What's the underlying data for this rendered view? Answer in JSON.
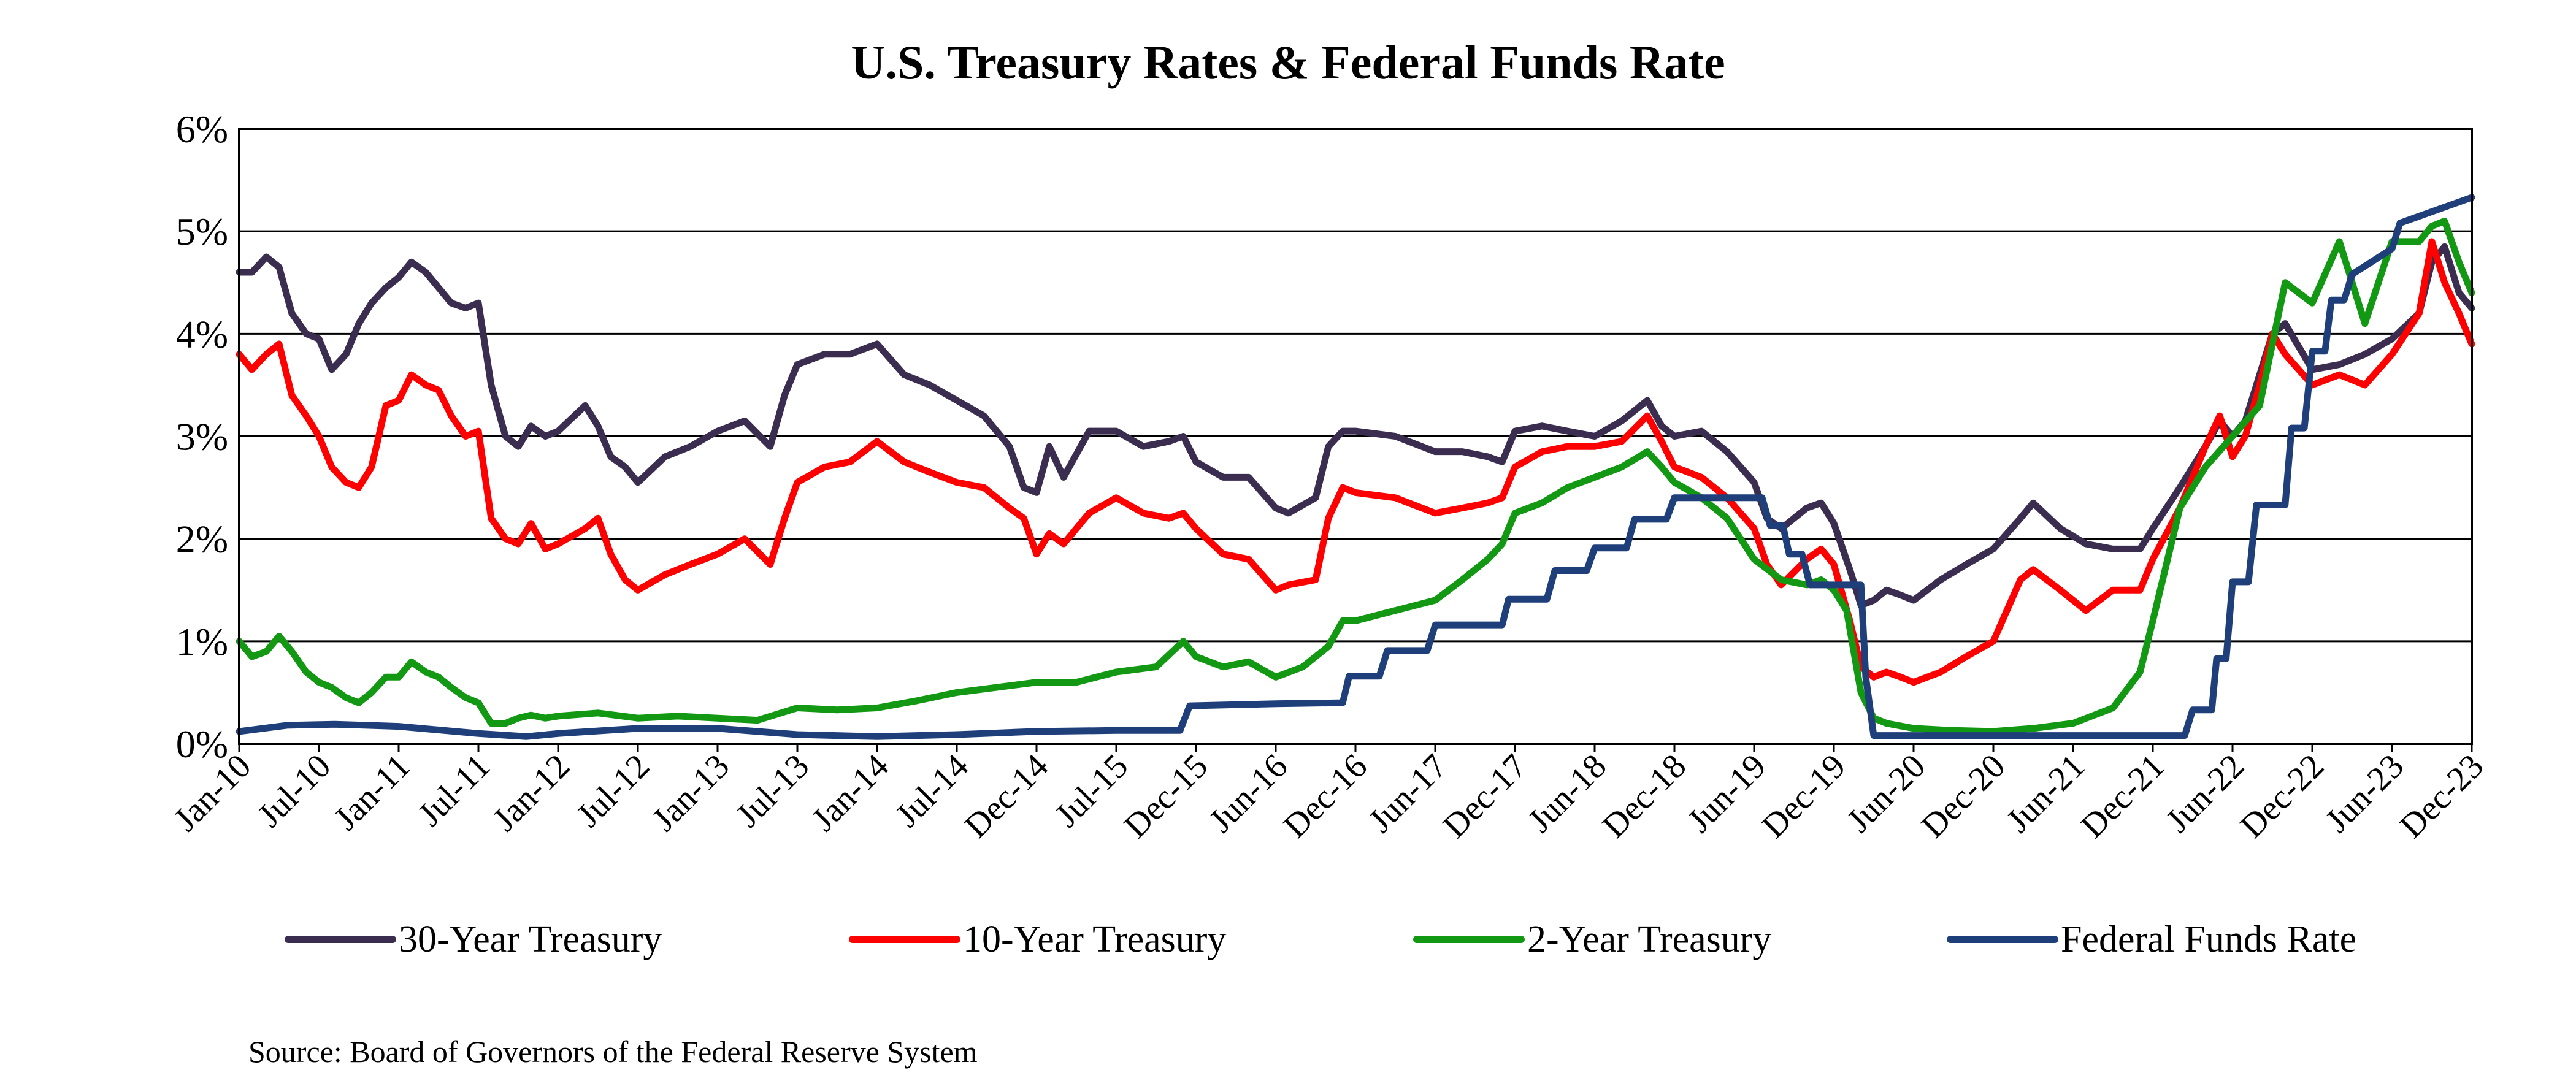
{
  "chart_data": {
    "type": "line",
    "title": "U.S. Treasury Rates & Federal Funds Rate",
    "xlabel": "",
    "ylabel": "",
    "ylim": [
      0,
      6
    ],
    "yticks": [
      0,
      1,
      2,
      3,
      4,
      5,
      6
    ],
    "ytick_labels": [
      "0%",
      "1%",
      "2%",
      "3%",
      "4%",
      "5%",
      "6%"
    ],
    "xlim": [
      2010.0,
      2024.0
    ],
    "xtick_labels": [
      "Jan-10",
      "Jul-10",
      "Jan-11",
      "Jul-11",
      "Jan-12",
      "Jul-12",
      "Jan-13",
      "Jul-13",
      "Jan-14",
      "Jul-14",
      "Dec-14",
      "Jul-15",
      "Dec-15",
      "Jun-16",
      "Dec-16",
      "Jun-17",
      "Dec-17",
      "Jun-18",
      "Dec-18",
      "Jun-19",
      "Dec-19",
      "Jun-20",
      "Dec-20",
      "Jun-21",
      "Dec-21",
      "Jun-22",
      "Dec-22",
      "Jun-23",
      "Dec-23"
    ],
    "grid": true,
    "legend_position": "bottom",
    "series": [
      {
        "name": "30-Year Treasury",
        "color": "#3b2d4f",
        "x": [
          2010.0,
          2010.08,
          2010.17,
          2010.25,
          2010.33,
          2010.42,
          2010.5,
          2010.58,
          2010.67,
          2010.75,
          2010.83,
          2010.92,
          2011.0,
          2011.08,
          2011.17,
          2011.25,
          2011.33,
          2011.42,
          2011.5,
          2011.58,
          2011.67,
          2011.75,
          2011.83,
          2011.92,
          2012.0,
          2012.17,
          2012.25,
          2012.33,
          2012.42,
          2012.5,
          2012.67,
          2012.83,
          2013.0,
          2013.17,
          2013.33,
          2013.42,
          2013.5,
          2013.67,
          2013.83,
          2014.0,
          2014.17,
          2014.33,
          2014.5,
          2014.67,
          2014.83,
          2014.92,
          2015.0,
          2015.08,
          2015.17,
          2015.33,
          2015.5,
          2015.67,
          2015.83,
          2015.92,
          2016.0,
          2016.17,
          2016.33,
          2016.5,
          2016.58,
          2016.75,
          2016.83,
          2016.92,
          2017.0,
          2017.25,
          2017.5,
          2017.67,
          2017.83,
          2017.92,
          2018.0,
          2018.17,
          2018.33,
          2018.5,
          2018.67,
          2018.83,
          2018.92,
          2019.0,
          2019.17,
          2019.33,
          2019.5,
          2019.58,
          2019.67,
          2019.83,
          2019.92,
          2020.0,
          2020.1,
          2020.17,
          2020.25,
          2020.33,
          2020.42,
          2020.5,
          2020.67,
          2020.83,
          2021.0,
          2021.17,
          2021.25,
          2021.42,
          2021.58,
          2021.75,
          2021.92,
          2022.0,
          2022.17,
          2022.33,
          2022.42,
          2022.5,
          2022.58,
          2022.67,
          2022.75,
          2022.83,
          2023.0,
          2023.17,
          2023.33,
          2023.5,
          2023.67,
          2023.75,
          2023.83,
          2023.92,
          2024.0
        ],
        "y": [
          4.6,
          4.6,
          4.75,
          4.65,
          4.2,
          4.0,
          3.95,
          3.65,
          3.8,
          4.1,
          4.3,
          4.45,
          4.55,
          4.7,
          4.6,
          4.45,
          4.3,
          4.25,
          4.3,
          3.5,
          3.0,
          2.9,
          3.1,
          3.0,
          3.05,
          3.3,
          3.1,
          2.8,
          2.7,
          2.55,
          2.8,
          2.9,
          3.05,
          3.15,
          2.9,
          3.4,
          3.7,
          3.8,
          3.8,
          3.9,
          3.6,
          3.5,
          3.35,
          3.2,
          2.9,
          2.5,
          2.45,
          2.9,
          2.6,
          3.05,
          3.05,
          2.9,
          2.95,
          3.0,
          2.75,
          2.6,
          2.6,
          2.3,
          2.25,
          2.4,
          2.9,
          3.05,
          3.05,
          3.0,
          2.85,
          2.85,
          2.8,
          2.75,
          3.05,
          3.1,
          3.05,
          3.0,
          3.15,
          3.35,
          3.1,
          3.0,
          3.05,
          2.85,
          2.55,
          2.2,
          2.1,
          2.3,
          2.35,
          2.15,
          1.7,
          1.35,
          1.4,
          1.5,
          1.45,
          1.4,
          1.6,
          1.75,
          1.9,
          2.2,
          2.35,
          2.1,
          1.95,
          1.9,
          1.9,
          2.1,
          2.5,
          2.9,
          3.15,
          3.0,
          3.15,
          3.6,
          4.0,
          4.1,
          3.65,
          3.7,
          3.8,
          3.95,
          4.2,
          4.7,
          4.85,
          4.4,
          4.25
        ]
      },
      {
        "name": "10-Year Treasury",
        "color": "#ff0000",
        "x": [
          2010.0,
          2010.08,
          2010.17,
          2010.25,
          2010.33,
          2010.42,
          2010.5,
          2010.58,
          2010.67,
          2010.75,
          2010.83,
          2010.92,
          2011.0,
          2011.08,
          2011.17,
          2011.25,
          2011.33,
          2011.42,
          2011.5,
          2011.58,
          2011.67,
          2011.75,
          2011.83,
          2011.92,
          2012.0,
          2012.17,
          2012.25,
          2012.33,
          2012.42,
          2012.5,
          2012.67,
          2012.83,
          2013.0,
          2013.17,
          2013.33,
          2013.42,
          2013.5,
          2013.67,
          2013.83,
          2014.0,
          2014.17,
          2014.33,
          2014.5,
          2014.67,
          2014.83,
          2014.92,
          2015.0,
          2015.08,
          2015.17,
          2015.33,
          2015.5,
          2015.67,
          2015.83,
          2015.92,
          2016.0,
          2016.17,
          2016.33,
          2016.5,
          2016.58,
          2016.75,
          2016.83,
          2016.92,
          2017.0,
          2017.25,
          2017.5,
          2017.67,
          2017.83,
          2017.92,
          2018.0,
          2018.17,
          2018.33,
          2018.5,
          2018.67,
          2018.83,
          2018.92,
          2019.0,
          2019.17,
          2019.33,
          2019.5,
          2019.58,
          2019.67,
          2019.83,
          2019.92,
          2020.0,
          2020.1,
          2020.17,
          2020.25,
          2020.33,
          2020.42,
          2020.5,
          2020.67,
          2020.83,
          2021.0,
          2021.17,
          2021.25,
          2021.42,
          2021.58,
          2021.75,
          2021.92,
          2022.0,
          2022.17,
          2022.33,
          2022.42,
          2022.5,
          2022.58,
          2022.67,
          2022.75,
          2022.83,
          2023.0,
          2023.17,
          2023.33,
          2023.5,
          2023.67,
          2023.75,
          2023.83,
          2023.92,
          2024.0
        ],
        "y": [
          3.8,
          3.65,
          3.8,
          3.9,
          3.4,
          3.2,
          3.0,
          2.7,
          2.55,
          2.5,
          2.7,
          3.3,
          3.35,
          3.6,
          3.5,
          3.45,
          3.2,
          3.0,
          3.05,
          2.2,
          2.0,
          1.95,
          2.15,
          1.9,
          1.95,
          2.1,
          2.2,
          1.85,
          1.6,
          1.5,
          1.65,
          1.75,
          1.85,
          2.0,
          1.75,
          2.2,
          2.55,
          2.7,
          2.75,
          2.95,
          2.75,
          2.65,
          2.55,
          2.5,
          2.3,
          2.2,
          1.85,
          2.05,
          1.95,
          2.25,
          2.4,
          2.25,
          2.2,
          2.25,
          2.1,
          1.85,
          1.8,
          1.5,
          1.55,
          1.6,
          2.2,
          2.5,
          2.45,
          2.4,
          2.25,
          2.3,
          2.35,
          2.4,
          2.7,
          2.85,
          2.9,
          2.9,
          2.95,
          3.2,
          2.95,
          2.7,
          2.6,
          2.4,
          2.1,
          1.75,
          1.55,
          1.8,
          1.9,
          1.75,
          1.2,
          0.75,
          0.65,
          0.7,
          0.65,
          0.6,
          0.7,
          0.85,
          1.0,
          1.6,
          1.7,
          1.5,
          1.3,
          1.5,
          1.5,
          1.8,
          2.3,
          2.9,
          3.2,
          2.8,
          3.0,
          3.5,
          4.0,
          3.8,
          3.5,
          3.6,
          3.5,
          3.8,
          4.2,
          4.9,
          4.5,
          4.2,
          3.9
        ]
      },
      {
        "name": "2-Year Treasury",
        "color": "#129812",
        "x": [
          2010.0,
          2010.08,
          2010.17,
          2010.25,
          2010.33,
          2010.42,
          2010.5,
          2010.58,
          2010.67,
          2010.75,
          2010.83,
          2010.92,
          2011.0,
          2011.08,
          2011.17,
          2011.25,
          2011.33,
          2011.42,
          2011.5,
          2011.58,
          2011.67,
          2011.75,
          2011.83,
          2011.92,
          2012.0,
          2012.25,
          2012.5,
          2012.75,
          2013.0,
          2013.25,
          2013.5,
          2013.75,
          2014.0,
          2014.25,
          2014.5,
          2014.75,
          2015.0,
          2015.25,
          2015.5,
          2015.75,
          2015.92,
          2016.0,
          2016.17,
          2016.33,
          2016.5,
          2016.67,
          2016.83,
          2016.92,
          2017.0,
          2017.25,
          2017.5,
          2017.67,
          2017.83,
          2017.92,
          2018.0,
          2018.17,
          2018.33,
          2018.5,
          2018.67,
          2018.83,
          2018.92,
          2019.0,
          2019.17,
          2019.33,
          2019.5,
          2019.67,
          2019.83,
          2019.92,
          2020.0,
          2020.08,
          2020.17,
          2020.25,
          2020.33,
          2020.5,
          2020.75,
          2021.0,
          2021.25,
          2021.5,
          2021.75,
          2021.92,
          2022.0,
          2022.17,
          2022.33,
          2022.5,
          2022.67,
          2022.75,
          2022.83,
          2023.0,
          2023.17,
          2023.33,
          2023.5,
          2023.67,
          2023.75,
          2023.83,
          2023.92,
          2024.0
        ],
        "y": [
          1.0,
          0.85,
          0.9,
          1.05,
          0.9,
          0.7,
          0.6,
          0.55,
          0.45,
          0.4,
          0.5,
          0.65,
          0.65,
          0.8,
          0.7,
          0.65,
          0.55,
          0.45,
          0.4,
          0.2,
          0.2,
          0.25,
          0.28,
          0.25,
          0.27,
          0.3,
          0.25,
          0.27,
          0.25,
          0.23,
          0.35,
          0.33,
          0.35,
          0.42,
          0.5,
          0.55,
          0.6,
          0.6,
          0.7,
          0.75,
          1.0,
          0.85,
          0.75,
          0.8,
          0.65,
          0.75,
          0.95,
          1.2,
          1.2,
          1.3,
          1.4,
          1.6,
          1.8,
          1.95,
          2.25,
          2.35,
          2.5,
          2.6,
          2.7,
          2.85,
          2.7,
          2.55,
          2.4,
          2.2,
          1.8,
          1.6,
          1.55,
          1.6,
          1.5,
          1.3,
          0.5,
          0.25,
          0.2,
          0.15,
          0.13,
          0.12,
          0.15,
          0.2,
          0.35,
          0.7,
          1.2,
          2.3,
          2.7,
          3.0,
          3.3,
          3.9,
          4.5,
          4.3,
          4.9,
          4.1,
          4.9,
          4.9,
          5.05,
          5.1,
          4.7,
          4.4
        ]
      },
      {
        "name": "Federal Funds Rate",
        "color": "#1f3f7a",
        "x": [
          2010.0,
          2010.3,
          2010.6,
          2011.0,
          2011.5,
          2011.8,
          2012.0,
          2012.5,
          2013.0,
          2013.5,
          2014.0,
          2014.5,
          2015.0,
          2015.5,
          2015.9,
          2015.96,
          2016.5,
          2016.92,
          2016.96,
          2017.15,
          2017.2,
          2017.45,
          2017.5,
          2017.92,
          2017.96,
          2018.2,
          2018.25,
          2018.45,
          2018.5,
          2018.7,
          2018.75,
          2018.95,
          2019.0,
          2019.55,
          2019.6,
          2019.68,
          2019.72,
          2019.8,
          2019.85,
          2020.17,
          2020.2,
          2020.25,
          2021.0,
          2021.5,
          2022.0,
          2022.2,
          2022.25,
          2022.37,
          2022.4,
          2022.46,
          2022.5,
          2022.6,
          2022.65,
          2022.83,
          2022.87,
          2022.95,
          2023.0,
          2023.08,
          2023.12,
          2023.2,
          2023.25,
          2023.5,
          2023.55,
          2024.0
        ],
        "y": [
          0.12,
          0.18,
          0.19,
          0.17,
          0.1,
          0.07,
          0.1,
          0.15,
          0.15,
          0.09,
          0.07,
          0.09,
          0.12,
          0.13,
          0.13,
          0.37,
          0.39,
          0.4,
          0.66,
          0.66,
          0.91,
          0.91,
          1.16,
          1.16,
          1.41,
          1.41,
          1.69,
          1.69,
          1.91,
          1.91,
          2.19,
          2.19,
          2.4,
          2.4,
          2.13,
          2.13,
          1.85,
          1.85,
          1.55,
          1.55,
          0.65,
          0.08,
          0.08,
          0.08,
          0.08,
          0.08,
          0.33,
          0.33,
          0.83,
          0.83,
          1.58,
          1.58,
          2.33,
          2.33,
          3.08,
          3.08,
          3.83,
          3.83,
          4.33,
          4.33,
          4.58,
          4.83,
          5.08,
          5.33
        ]
      }
    ]
  },
  "source": "Source:  Board of Governors of the Federal Reserve System"
}
